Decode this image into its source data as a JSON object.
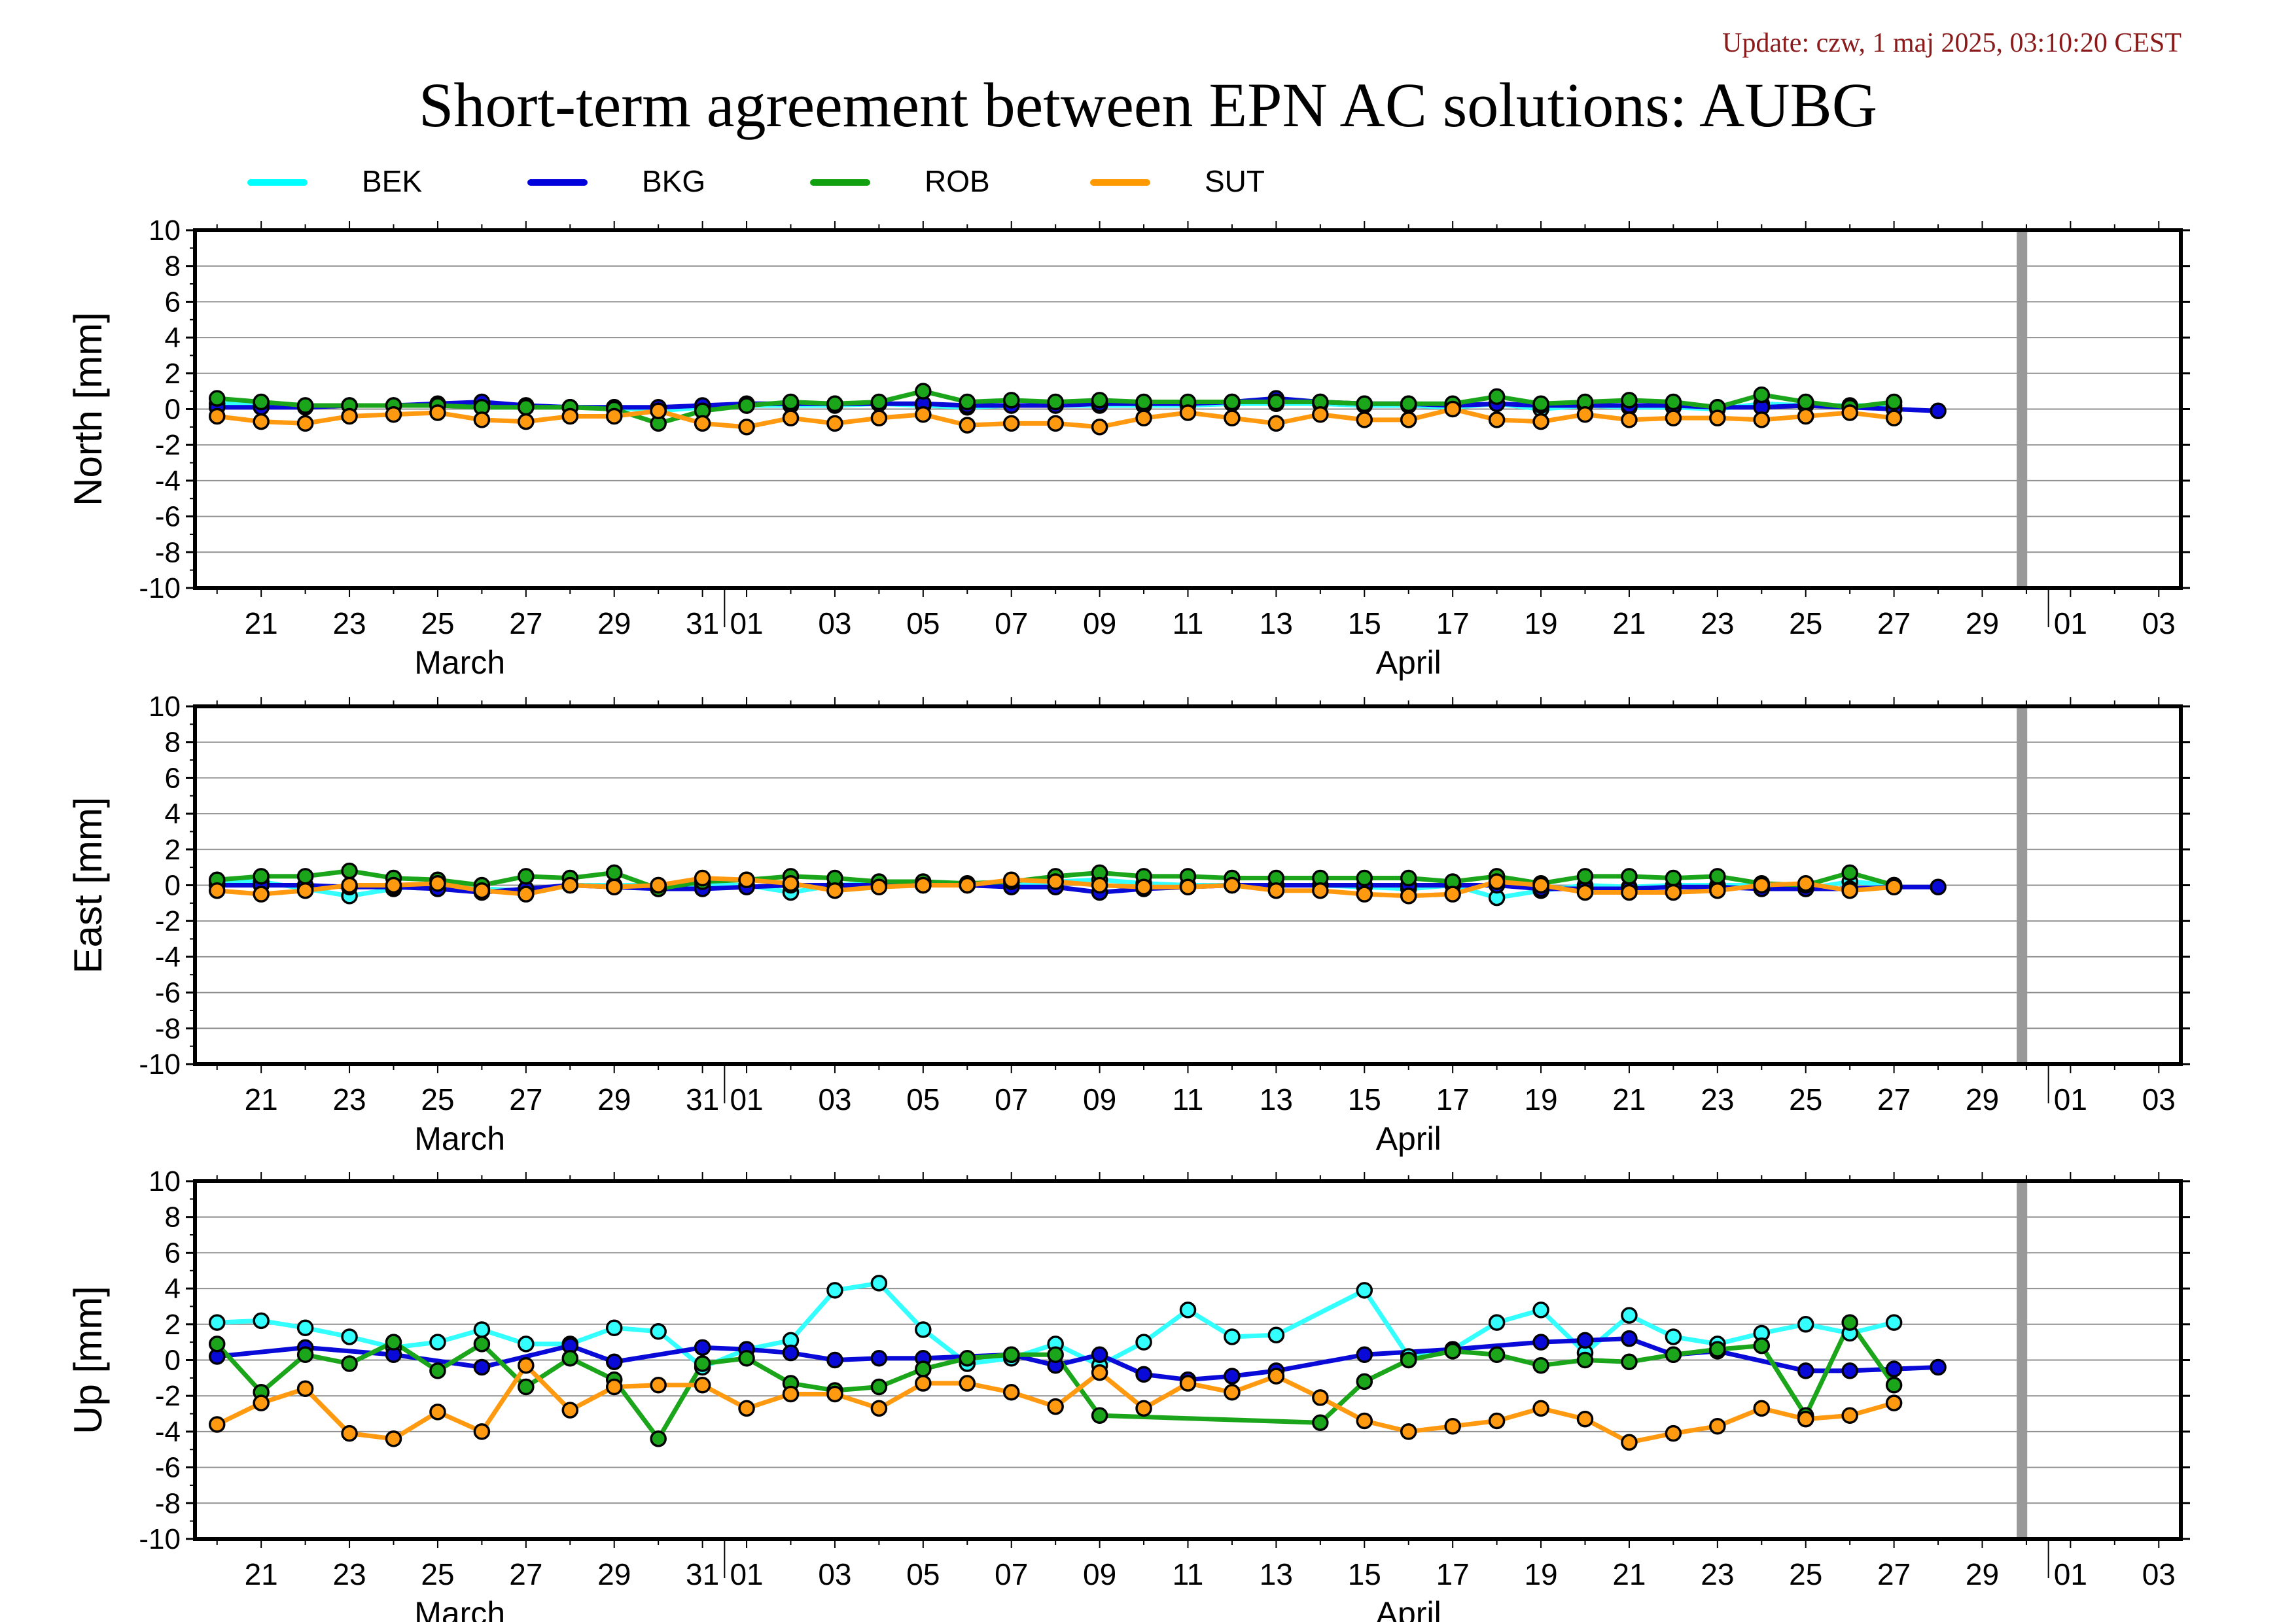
{
  "update_text": "Update: czw, 1 maj 2025, 03:10:20 CEST",
  "title": "Short-term agreement between EPN AC solutions: AUBG",
  "legend": [
    {
      "name": "BEK",
      "color": "#00ffff"
    },
    {
      "name": "BKG",
      "color": "#0000dd"
    },
    {
      "name": "ROB",
      "color": "#10a010"
    },
    {
      "name": "SUT",
      "color": "#ff9900"
    }
  ],
  "colors": {
    "BEK": "#33ffff",
    "BKG": "#0a0ad8",
    "ROB": "#1aa51a",
    "SUT": "#ff9a10",
    "gap_marker": "#999999"
  },
  "x_axis": {
    "day_labels": [
      {
        "d": 21,
        "label": "21"
      },
      {
        "d": 23,
        "label": "23"
      },
      {
        "d": 25,
        "label": "25"
      },
      {
        "d": 27,
        "label": "27"
      },
      {
        "d": 29,
        "label": "29"
      },
      {
        "d": 31,
        "label": "31"
      },
      {
        "d": 32,
        "label": "01"
      },
      {
        "d": 34,
        "label": "03"
      },
      {
        "d": 36,
        "label": "05"
      },
      {
        "d": 38,
        "label": "07"
      },
      {
        "d": 40,
        "label": "09"
      },
      {
        "d": 42,
        "label": "11"
      },
      {
        "d": 44,
        "label": "13"
      },
      {
        "d": 46,
        "label": "15"
      },
      {
        "d": 48,
        "label": "17"
      },
      {
        "d": 50,
        "label": "19"
      },
      {
        "d": 52,
        "label": "21"
      },
      {
        "d": 54,
        "label": "23"
      },
      {
        "d": 56,
        "label": "25"
      },
      {
        "d": 58,
        "label": "27"
      },
      {
        "d": 60,
        "label": "29"
      },
      {
        "d": 62,
        "label": "01"
      },
      {
        "d": 64,
        "label": "03"
      }
    ],
    "month_labels": [
      {
        "d": 25.5,
        "label": "March"
      },
      {
        "d": 47,
        "label": "April"
      }
    ],
    "month_boundaries": [
      31.5,
      61.5
    ]
  },
  "chart_data": [
    {
      "type": "line",
      "ylabel": "North [mm]",
      "ylim": [
        -10,
        10
      ],
      "yticks": [
        10,
        8,
        6,
        4,
        2,
        0,
        -2,
        -4,
        -6,
        -8,
        -10
      ],
      "xlim": [
        19.5,
        64.5
      ],
      "gap_marker_day": 60.9,
      "series": [
        {
          "name": "BEK",
          "x": [
            20,
            21,
            22,
            23,
            24,
            25,
            26,
            27,
            28,
            29,
            30,
            31,
            32,
            33,
            34,
            35,
            36,
            37,
            38,
            39,
            40,
            41,
            42,
            43,
            44,
            45,
            46,
            47,
            48,
            49,
            50,
            51,
            52,
            53,
            54,
            55,
            56,
            57,
            58
          ],
          "y": [
            0.3,
            0.3,
            0.2,
            0.2,
            0.2,
            0.2,
            0.3,
            0.2,
            0.1,
            0.1,
            -0.1,
            0.1,
            0.2,
            0.2,
            0.2,
            0.3,
            0.2,
            0.1,
            0.2,
            0.2,
            0.2,
            0.2,
            0.2,
            0.3,
            0.3,
            0.3,
            0.2,
            0.2,
            0.1,
            0.3,
            0.0,
            0.2,
            0.1,
            0.1,
            0.0,
            0.3,
            0.2,
            0.2,
            0.2
          ]
        },
        {
          "name": "BKG",
          "x": [
            20,
            21,
            22,
            23,
            24,
            25,
            26,
            27,
            28,
            29,
            30,
            31,
            32,
            33,
            34,
            35,
            36,
            37,
            38,
            39,
            40,
            41,
            42,
            43,
            44,
            45,
            46,
            47,
            48,
            49,
            50,
            51,
            52,
            53,
            54,
            55,
            56,
            57,
            58,
            59
          ],
          "y": [
            0.1,
            0.1,
            0.1,
            0.2,
            0.2,
            0.3,
            0.4,
            0.2,
            0.1,
            0.1,
            0.1,
            0.2,
            0.3,
            0.3,
            0.3,
            0.3,
            0.3,
            0.2,
            0.2,
            0.2,
            0.3,
            0.3,
            0.3,
            0.4,
            0.6,
            0.4,
            0.3,
            0.3,
            0.2,
            0.3,
            0.2,
            0.2,
            0.2,
            0.2,
            0.1,
            0.1,
            0.2,
            0.1,
            0.0,
            -0.1
          ]
        },
        {
          "name": "ROB",
          "x": [
            20,
            21,
            22,
            23,
            24,
            25,
            26,
            27,
            28,
            29,
            30,
            31,
            32,
            33,
            34,
            35,
            36,
            37,
            38,
            39,
            40,
            41,
            42,
            43,
            44,
            45,
            46,
            47,
            48,
            49,
            50,
            51,
            52,
            53,
            54,
            55,
            56,
            57,
            58
          ],
          "y": [
            0.6,
            0.4,
            0.2,
            0.2,
            0.2,
            0.2,
            0.1,
            0.1,
            0.1,
            0.0,
            -0.8,
            -0.1,
            0.2,
            0.4,
            0.3,
            0.4,
            1.0,
            0.4,
            0.5,
            0.4,
            0.5,
            0.4,
            0.4,
            0.4,
            0.4,
            0.4,
            0.3,
            0.3,
            0.3,
            0.7,
            0.3,
            0.4,
            0.5,
            0.4,
            0.1,
            0.8,
            0.4,
            0.1,
            0.4
          ]
        },
        {
          "name": "SUT",
          "x": [
            20,
            21,
            22,
            23,
            24,
            25,
            26,
            27,
            28,
            29,
            30,
            31,
            32,
            33,
            34,
            35,
            36,
            37,
            38,
            39,
            40,
            41,
            42,
            43,
            44,
            45,
            46,
            47,
            48,
            49,
            50,
            51,
            52,
            53,
            54,
            55,
            56,
            57,
            58
          ],
          "y": [
            -0.4,
            -0.7,
            -0.8,
            -0.4,
            -0.3,
            -0.2,
            -0.6,
            -0.7,
            -0.4,
            -0.4,
            -0.1,
            -0.8,
            -1.0,
            -0.5,
            -0.8,
            -0.5,
            -0.3,
            -0.9,
            -0.8,
            -0.8,
            -1.0,
            -0.5,
            -0.2,
            -0.5,
            -0.8,
            -0.3,
            -0.6,
            -0.6,
            0.0,
            -0.6,
            -0.7,
            -0.3,
            -0.6,
            -0.5,
            -0.5,
            -0.6,
            -0.4,
            -0.2,
            -0.5
          ]
        }
      ]
    },
    {
      "type": "line",
      "ylabel": "East [mm]",
      "ylim": [
        -10,
        10
      ],
      "yticks": [
        10,
        8,
        6,
        4,
        2,
        0,
        -2,
        -4,
        -6,
        -8,
        -10
      ],
      "xlim": [
        19.5,
        64.5
      ],
      "gap_marker_day": 60.9,
      "series": [
        {
          "name": "BEK",
          "x": [
            20,
            21,
            22,
            23,
            24,
            25,
            26,
            27,
            28,
            29,
            30,
            31,
            32,
            33,
            34,
            35,
            36,
            37,
            38,
            39,
            40,
            41,
            42,
            43,
            44,
            45,
            46,
            47,
            48,
            49,
            50,
            51,
            52,
            53,
            54,
            55,
            56,
            57,
            58
          ],
          "y": [
            0.2,
            0.2,
            -0.2,
            -0.6,
            -0.2,
            0.1,
            -0.2,
            -0.3,
            0.0,
            0.0,
            0.0,
            0.0,
            0.0,
            -0.4,
            0.0,
            0.1,
            0.0,
            0.0,
            0.0,
            0.2,
            0.3,
            0.1,
            0.0,
            0.0,
            0.0,
            0.0,
            -0.1,
            -0.2,
            0.0,
            -0.7,
            -0.3,
            0.0,
            -0.1,
            0.0,
            0.0,
            0.0,
            -0.2,
            0.2,
            0.0
          ]
        },
        {
          "name": "BKG",
          "x": [
            20,
            21,
            22,
            23,
            24,
            25,
            26,
            27,
            28,
            29,
            30,
            31,
            32,
            33,
            34,
            35,
            36,
            37,
            38,
            39,
            40,
            41,
            42,
            43,
            44,
            45,
            46,
            47,
            48,
            49,
            50,
            51,
            52,
            53,
            54,
            55,
            56,
            57,
            58,
            59
          ],
          "y": [
            0.0,
            0.0,
            0.0,
            -0.1,
            -0.1,
            -0.2,
            -0.4,
            -0.2,
            0.0,
            -0.1,
            -0.2,
            -0.2,
            -0.1,
            0.0,
            0.0,
            0.0,
            0.0,
            0.0,
            -0.1,
            -0.1,
            -0.4,
            -0.2,
            -0.1,
            0.0,
            0.0,
            0.0,
            0.0,
            0.0,
            0.0,
            0.0,
            -0.2,
            -0.2,
            -0.2,
            -0.1,
            -0.1,
            -0.2,
            -0.2,
            -0.2,
            -0.1,
            -0.1
          ]
        },
        {
          "name": "ROB",
          "x": [
            20,
            21,
            22,
            23,
            24,
            25,
            26,
            27,
            28,
            29,
            30,
            31,
            32,
            33,
            34,
            35,
            36,
            37,
            38,
            39,
            40,
            41,
            42,
            43,
            44,
            45,
            46,
            47,
            48,
            49,
            50,
            51,
            52,
            53,
            54,
            55,
            56,
            57,
            58
          ],
          "y": [
            0.3,
            0.5,
            0.5,
            0.8,
            0.4,
            0.3,
            0.0,
            0.5,
            0.4,
            0.7,
            -0.2,
            0.2,
            0.3,
            0.5,
            0.4,
            0.2,
            0.2,
            0.1,
            0.2,
            0.5,
            0.7,
            0.5,
            0.5,
            0.4,
            0.4,
            0.4,
            0.4,
            0.4,
            0.2,
            0.5,
            0.1,
            0.5,
            0.5,
            0.4,
            0.5,
            0.1,
            0.0,
            0.7,
            0.0
          ]
        },
        {
          "name": "SUT",
          "x": [
            20,
            21,
            22,
            23,
            24,
            25,
            26,
            27,
            28,
            29,
            30,
            31,
            32,
            33,
            34,
            35,
            36,
            37,
            38,
            39,
            40,
            41,
            42,
            43,
            44,
            45,
            46,
            47,
            48,
            49,
            50,
            51,
            52,
            53,
            54,
            55,
            56,
            57,
            58
          ],
          "y": [
            -0.3,
            -0.5,
            -0.3,
            0.0,
            0.0,
            0.1,
            -0.3,
            -0.5,
            0.0,
            -0.1,
            0.0,
            0.4,
            0.3,
            0.1,
            -0.3,
            -0.1,
            0.0,
            0.0,
            0.3,
            0.2,
            0.0,
            -0.1,
            -0.1,
            0.0,
            -0.3,
            -0.3,
            -0.5,
            -0.6,
            -0.5,
            0.2,
            0.0,
            -0.4,
            -0.4,
            -0.4,
            -0.3,
            0.0,
            0.1,
            -0.3,
            -0.1
          ]
        }
      ]
    },
    {
      "type": "line",
      "ylabel": "Up [mm]",
      "ylim": [
        -10,
        10
      ],
      "yticks": [
        10,
        8,
        6,
        4,
        2,
        0,
        -2,
        -4,
        -6,
        -8,
        -10
      ],
      "xlim": [
        19.5,
        64.5
      ],
      "gap_marker_day": 60.9,
      "series": [
        {
          "name": "BEK",
          "x": [
            20,
            21,
            22,
            23,
            24,
            25,
            26,
            27,
            28,
            29,
            30,
            31,
            32,
            33,
            34,
            35,
            36,
            37,
            38,
            39,
            40,
            41,
            42,
            43,
            44,
            46,
            47,
            48,
            49,
            50,
            51,
            52,
            53,
            54,
            55,
            56,
            57,
            58
          ],
          "y": [
            2.1,
            2.2,
            1.8,
            1.3,
            0.7,
            1.0,
            1.7,
            0.9,
            0.9,
            1.8,
            1.6,
            -0.4,
            0.6,
            1.1,
            3.9,
            4.3,
            1.7,
            -0.2,
            0.1,
            0.9,
            -0.3,
            1.0,
            2.8,
            1.3,
            1.4,
            3.9,
            0.2,
            0.6,
            2.1,
            2.8,
            0.4,
            2.5,
            1.3,
            0.9,
            1.5,
            2.0,
            1.5,
            2.1
          ]
        },
        {
          "name": "BKG",
          "x": [
            20,
            22,
            24,
            26,
            28,
            29,
            31,
            32,
            33,
            34,
            35,
            36,
            38,
            39,
            40,
            41,
            42,
            43,
            44,
            46,
            48,
            50,
            51,
            52,
            53,
            54,
            56,
            57,
            58,
            59
          ],
          "y": [
            0.2,
            0.7,
            0.3,
            -0.4,
            0.8,
            -0.1,
            0.7,
            0.6,
            0.4,
            0.0,
            0.1,
            0.1,
            0.3,
            -0.3,
            0.3,
            -0.8,
            -1.1,
            -0.9,
            -0.6,
            0.3,
            0.6,
            1.0,
            1.1,
            1.2,
            0.3,
            0.5,
            -0.6,
            -0.6,
            -0.5,
            -0.4
          ]
        },
        {
          "name": "ROB",
          "x": [
            20,
            21,
            22,
            23,
            24,
            25,
            26,
            27,
            28,
            29,
            30,
            31,
            32,
            33,
            34,
            35,
            36,
            37,
            38,
            39,
            40,
            45,
            46,
            47,
            48,
            49,
            50,
            51,
            52,
            53,
            54,
            55,
            56,
            57,
            58
          ],
          "y": [
            0.9,
            -1.8,
            0.3,
            -0.2,
            1.0,
            -0.6,
            0.9,
            -1.5,
            0.1,
            -1.1,
            -4.4,
            -0.2,
            0.1,
            -1.3,
            -1.7,
            -1.5,
            -0.5,
            0.1,
            0.3,
            0.3,
            -3.1,
            -3.5,
            -1.2,
            0.0,
            0.5,
            0.3,
            -0.3,
            0.0,
            -0.1,
            0.3,
            0.6,
            0.8,
            -3.1,
            2.1,
            -1.4
          ]
        },
        {
          "name": "SUT",
          "x": [
            20,
            21,
            22,
            23,
            24,
            25,
            26,
            27,
            28,
            29,
            30,
            31,
            32,
            33,
            34,
            35,
            36,
            37,
            38,
            39,
            40,
            41,
            42,
            43,
            44,
            45,
            46,
            47,
            48,
            49,
            50,
            51,
            52,
            53,
            54,
            55,
            56,
            57,
            58
          ],
          "y": [
            -3.6,
            -2.4,
            -1.6,
            -4.1,
            -4.4,
            -2.9,
            -4.0,
            -0.3,
            -2.8,
            -1.5,
            -1.4,
            -1.4,
            -2.7,
            -1.9,
            -1.9,
            -2.7,
            -1.3,
            -1.3,
            -1.8,
            -2.6,
            -0.7,
            -2.7,
            -1.3,
            -1.8,
            -0.9,
            -2.1,
            -3.4,
            -4.0,
            -3.7,
            -3.4,
            -2.7,
            -3.3,
            -4.6,
            -4.1,
            -3.7,
            -2.7,
            -3.3,
            -3.1,
            -2.4
          ]
        }
      ]
    }
  ]
}
